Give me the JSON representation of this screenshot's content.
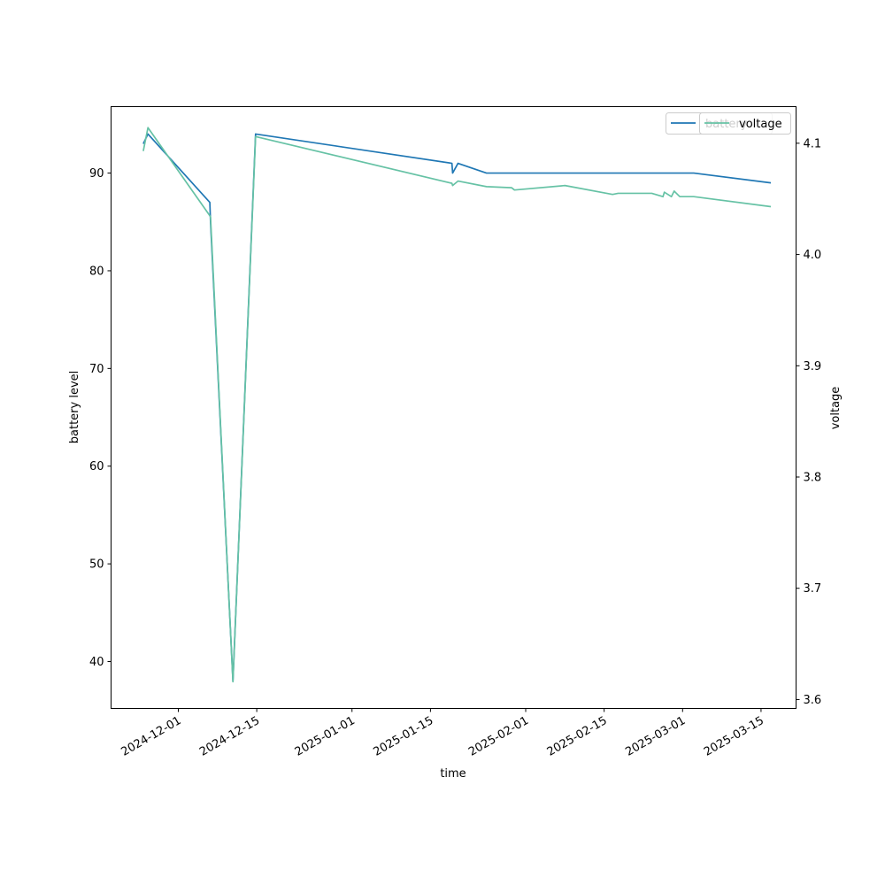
{
  "chart_data": {
    "type": "line",
    "xlabel": "time",
    "ylabel_left": "battery level",
    "ylabel_right": "voltage",
    "x_ticks": [
      "2024-12-01",
      "2024-12-15",
      "2025-01-01",
      "2025-01-15",
      "2025-02-01",
      "2025-02-15",
      "2025-03-01",
      "2025-03-15"
    ],
    "y_left_ticks": [
      40,
      50,
      60,
      70,
      80,
      90
    ],
    "y_right_ticks": [
      "3.6",
      "3.7",
      "3.8",
      "3.9",
      "4.0",
      "4.1"
    ],
    "y_left_lim": [
      35.2,
      96.8
    ],
    "y_right_lim": [
      3.592,
      4.1329
    ],
    "x_lim": [
      "2024-11-19T00:00:00",
      "2025-03-21T06:00:00"
    ],
    "legend": {
      "placement": "top-right",
      "entries": [
        "battery",
        "voltage"
      ]
    },
    "series": [
      {
        "name": "battery",
        "axis": "left",
        "color": "#1f77b4",
        "points": [
          [
            "2024-11-24T18:00:00",
            93
          ],
          [
            "2024-11-25T14:00:00",
            94
          ],
          [
            "2024-12-06T15:00:00",
            87
          ],
          [
            "2024-12-06T18:00:00",
            85
          ],
          [
            "2024-12-10T18:00:00",
            38
          ],
          [
            "2024-12-14T19:00:00",
            94
          ],
          [
            "2025-01-18T20:00:00",
            91
          ],
          [
            "2025-01-18T23:00:00",
            90
          ],
          [
            "2025-01-19T22:00:00",
            91
          ],
          [
            "2025-01-25T00:00:00",
            90
          ],
          [
            "2025-03-03T00:00:00",
            90
          ],
          [
            "2025-03-16T18:00:00",
            89
          ]
        ]
      },
      {
        "name": "voltage",
        "axis": "right",
        "color": "#66c2a5",
        "points": [
          [
            "2024-11-24T18:00:00",
            4.093
          ],
          [
            "2024-11-25T14:00:00",
            4.114
          ],
          [
            "2024-12-06T18:00:00",
            4.034
          ],
          [
            "2024-12-10T18:00:00",
            3.616
          ],
          [
            "2024-12-14T19:00:00",
            4.106
          ],
          [
            "2025-01-18T20:00:00",
            4.064
          ],
          [
            "2025-01-18T23:00:00",
            4.062
          ],
          [
            "2025-01-19T22:00:00",
            4.066
          ],
          [
            "2025-01-25T00:00:00",
            4.061
          ],
          [
            "2025-01-29T12:00:00",
            4.06
          ],
          [
            "2025-01-30T00:00:00",
            4.058
          ],
          [
            "2025-02-08T00:00:00",
            4.062
          ],
          [
            "2025-02-16T12:00:00",
            4.054
          ],
          [
            "2025-02-17T12:00:00",
            4.055
          ],
          [
            "2025-02-23T12:00:00",
            4.055
          ],
          [
            "2025-02-25T12:00:00",
            4.052
          ],
          [
            "2025-02-25T18:00:00",
            4.056
          ],
          [
            "2025-02-27T00:00:00",
            4.052
          ],
          [
            "2025-02-27T12:00:00",
            4.057
          ],
          [
            "2025-02-28T12:00:00",
            4.052
          ],
          [
            "2025-03-03T00:00:00",
            4.052
          ],
          [
            "2025-03-16T18:00:00",
            4.043
          ]
        ]
      }
    ]
  }
}
